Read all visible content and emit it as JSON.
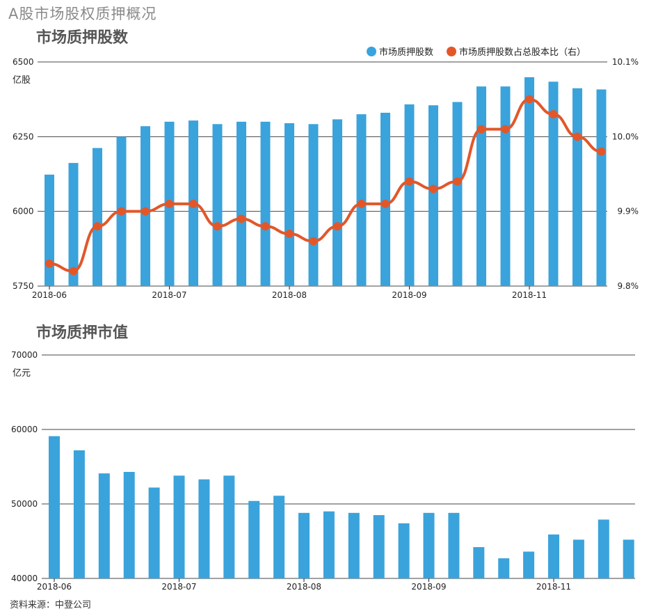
{
  "page_title": "A股市场股权质押概况",
  "source": "资料来源：中登公司",
  "colors": {
    "bar": "#3aa3dc",
    "line": "#e2572a",
    "grid": "#444444"
  },
  "chart_data": [
    {
      "type": "bar",
      "title": "市场质押股数",
      "y_unit": "亿股",
      "ylim": [
        5750,
        6500
      ],
      "y_ticks": [
        "6500",
        "6250",
        "6000",
        "5750"
      ],
      "y2lim": [
        9.8,
        10.1
      ],
      "y2_ticks": [
        "10.1%",
        "10.0%",
        "9.9%",
        "9.8%"
      ],
      "x_tick_labels": [
        "2018-06",
        "2018-07",
        "2018-08",
        "2018-09",
        "2018-11"
      ],
      "legend": [
        "市场质押股数",
        "市场质押股数占总股本比（右）"
      ],
      "legend_position": "top-right",
      "grid": true,
      "series": [
        {
          "name": "市场质押股数",
          "type": "bar",
          "axis": "left",
          "values": [
            6123,
            6162,
            6212,
            6250,
            6285,
            6300,
            6304,
            6292,
            6300,
            6300,
            6295,
            6292,
            6308,
            6325,
            6330,
            6358,
            6355,
            6366,
            6418,
            6418,
            6449,
            6434,
            6412,
            6408
          ]
        },
        {
          "name": "市场质押股数占总股本比（右）",
          "type": "line",
          "axis": "right",
          "values": [
            9.83,
            9.82,
            9.88,
            9.9,
            9.9,
            9.91,
            9.91,
            9.88,
            9.89,
            9.88,
            9.87,
            9.86,
            9.88,
            9.91,
            9.91,
            9.94,
            9.93,
            9.94,
            10.01,
            10.01,
            10.05,
            10.03,
            10.0,
            9.98
          ]
        }
      ]
    },
    {
      "type": "bar",
      "title": "市场质押市值",
      "y_unit": "亿元",
      "ylim": [
        40000,
        70000
      ],
      "y_ticks": [
        "70000",
        "60000",
        "50000",
        "40000"
      ],
      "x_tick_labels": [
        "2018-06",
        "2018-07",
        "2018-08",
        "2018-09",
        "2018-11"
      ],
      "grid": true,
      "series": [
        {
          "name": "市场质押市值",
          "values": [
            59100,
            57200,
            54100,
            54300,
            52200,
            53800,
            53300,
            53800,
            50400,
            51100,
            48800,
            49000,
            48800,
            48500,
            47400,
            48800,
            48800,
            44200,
            42700,
            43600,
            45900,
            45200,
            47900,
            45200
          ]
        }
      ]
    }
  ]
}
